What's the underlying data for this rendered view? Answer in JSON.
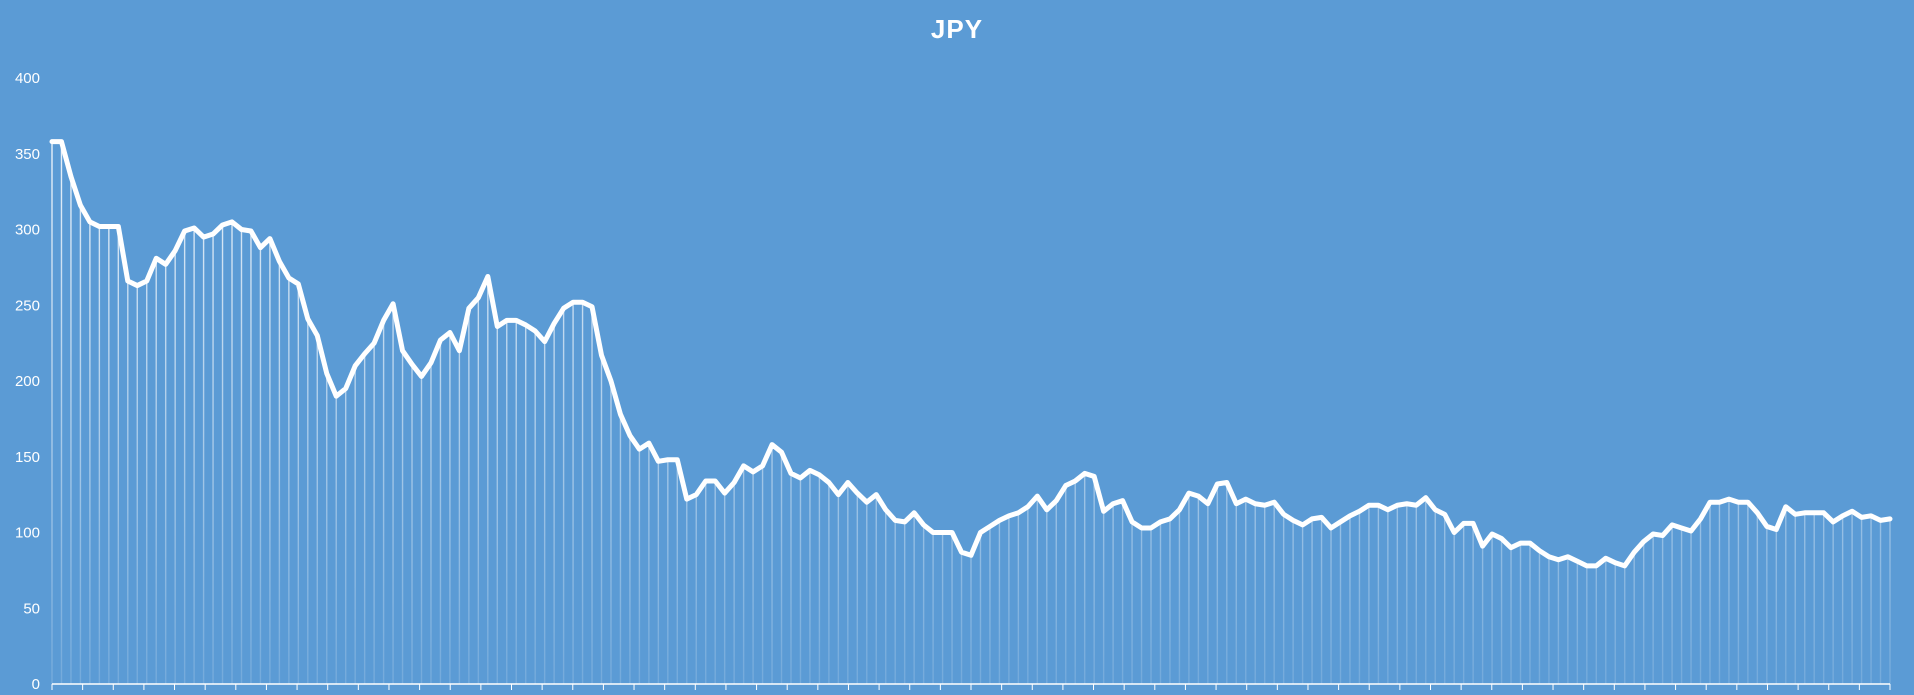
{
  "chart_data": {
    "type": "area",
    "title": "JPY",
    "xlabel": "",
    "ylabel": "",
    "ylim": [
      0,
      400
    ],
    "yticks": [
      0,
      50,
      100,
      150,
      200,
      250,
      300,
      350,
      400
    ],
    "grid": false,
    "legend": "none",
    "colors": {
      "background": "#5b9bd5",
      "line": "#ffffff",
      "drop_lines": "#ffffff"
    },
    "series": [
      {
        "values": [
          358,
          358,
          335,
          316,
          305,
          302,
          302,
          302,
          266,
          263,
          266,
          281,
          277,
          286,
          299,
          301,
          295,
          297,
          303,
          305,
          300,
          299,
          288,
          294,
          279,
          268,
          264,
          241,
          230,
          205,
          190,
          195,
          210,
          218,
          225,
          240,
          251,
          220,
          211,
          203,
          212,
          227,
          232,
          220,
          248,
          255,
          269,
          236,
          240,
          240,
          237,
          233,
          226,
          238,
          248,
          252,
          252,
          249,
          217,
          200,
          178,
          164,
          155,
          159,
          147,
          148,
          148,
          122,
          125,
          134,
          134,
          126,
          133,
          144,
          140,
          144,
          158,
          153,
          139,
          136,
          141,
          138,
          133,
          125,
          133,
          126,
          120,
          125,
          115,
          108,
          107,
          113,
          105,
          100,
          100,
          100,
          87,
          85,
          100,
          104,
          108,
          111,
          113,
          117,
          124,
          115,
          121,
          131,
          134,
          139,
          137,
          114,
          119,
          121,
          107,
          103,
          103,
          107,
          109,
          115,
          126,
          124,
          119,
          132,
          133,
          119,
          122,
          119,
          118,
          120,
          112,
          108,
          105,
          109,
          110,
          103,
          107,
          111,
          114,
          118,
          118,
          115,
          118,
          119,
          118,
          123,
          115,
          112,
          100,
          106,
          106,
          91,
          99,
          96,
          90,
          93,
          93,
          88,
          84,
          82,
          84,
          81,
          78,
          78,
          83,
          80,
          78,
          87,
          94,
          99,
          98,
          105,
          103,
          101,
          109,
          120,
          120,
          122,
          120,
          120,
          113,
          104,
          102,
          117,
          112,
          113,
          113,
          113,
          107,
          111,
          114,
          110,
          111,
          108,
          109
        ]
      }
    ]
  }
}
